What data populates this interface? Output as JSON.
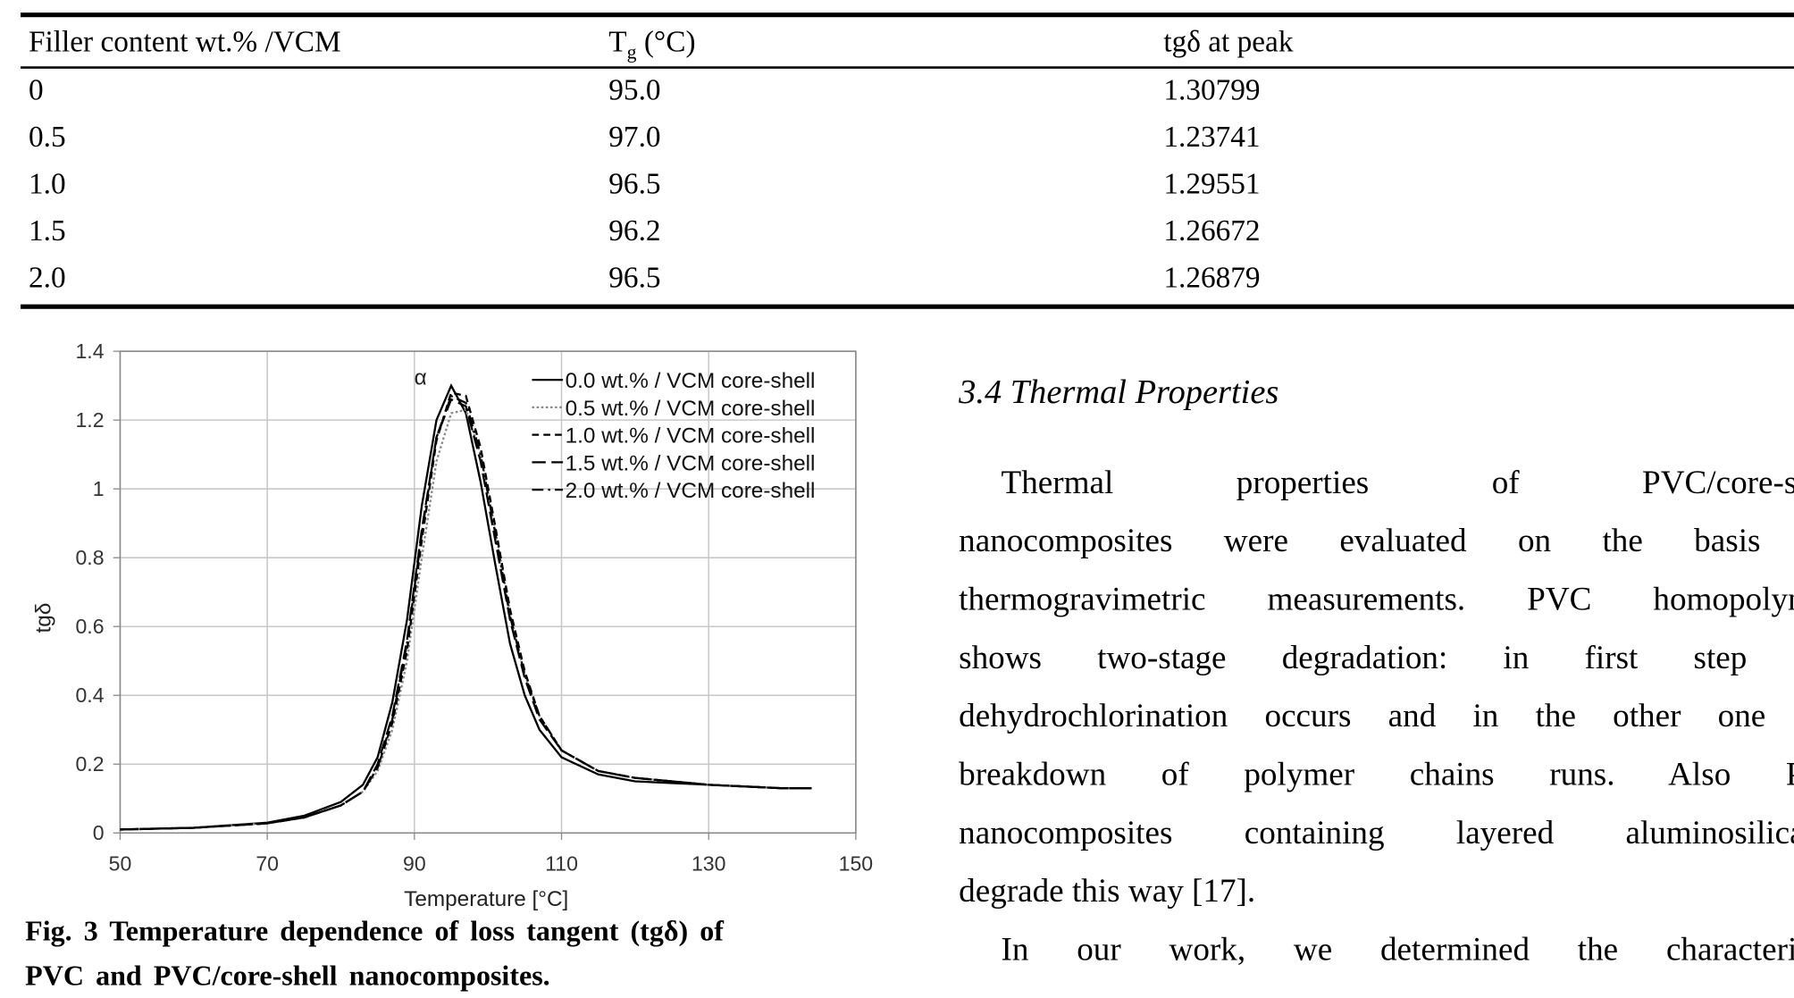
{
  "table": {
    "header": [
      {
        "text": "Filler content wt.% /VCM"
      },
      {
        "text": "T",
        "sub": "g",
        "rest": " (°C)"
      },
      {
        "text": "tgδ at peak"
      }
    ],
    "rows": [
      [
        "0",
        "95.0",
        "1.30799"
      ],
      [
        "0.5",
        "97.0",
        "1.23741"
      ],
      [
        "1.0",
        "96.5",
        "1.29551"
      ],
      [
        "1.5",
        "96.2",
        "1.26672"
      ],
      [
        "2.0",
        "96.5",
        "1.26879"
      ]
    ]
  },
  "chart_data": {
    "type": "line",
    "x_label": "Temperature [°C]",
    "y_label": "tgδ",
    "annotation": "α",
    "x": [
      50,
      60,
      70,
      75,
      80,
      83,
      85,
      87,
      89,
      91,
      93,
      95,
      97,
      99,
      101,
      103,
      105,
      107,
      110,
      115,
      120,
      130,
      140,
      144
    ],
    "series": [
      {
        "name": "0.0 wt.% / VCM core-shell",
        "color": "#000000",
        "style": "solid",
        "values": [
          0.01,
          0.015,
          0.03,
          0.05,
          0.09,
          0.14,
          0.22,
          0.38,
          0.62,
          0.95,
          1.2,
          1.3,
          1.22,
          1.02,
          0.78,
          0.55,
          0.4,
          0.3,
          0.22,
          0.17,
          0.15,
          0.14,
          0.13,
          0.13
        ]
      },
      {
        "name": "0.5 wt.% / VCM core-shell",
        "color": "#888888",
        "style": "dotted",
        "values": [
          0.01,
          0.015,
          0.028,
          0.045,
          0.08,
          0.12,
          0.18,
          0.3,
          0.5,
          0.8,
          1.08,
          1.22,
          1.23,
          1.1,
          0.88,
          0.64,
          0.46,
          0.34,
          0.24,
          0.18,
          0.16,
          0.14,
          0.13,
          0.13
        ]
      },
      {
        "name": "1.0 wt.% / VCM core-shell",
        "color": "#000000",
        "style": "dashed",
        "values": [
          0.01,
          0.015,
          0.028,
          0.045,
          0.08,
          0.12,
          0.19,
          0.32,
          0.53,
          0.85,
          1.14,
          1.28,
          1.27,
          1.12,
          0.89,
          0.65,
          0.47,
          0.34,
          0.24,
          0.18,
          0.16,
          0.14,
          0.13,
          0.13
        ]
      },
      {
        "name": "1.5 wt.% / VCM core-shell",
        "color": "#000000",
        "style": "longdash",
        "values": [
          0.01,
          0.015,
          0.028,
          0.045,
          0.08,
          0.12,
          0.2,
          0.34,
          0.56,
          0.88,
          1.15,
          1.26,
          1.24,
          1.08,
          0.85,
          0.62,
          0.45,
          0.33,
          0.24,
          0.18,
          0.16,
          0.14,
          0.13,
          0.13
        ]
      },
      {
        "name": "2.0 wt.% / VCM core-shell",
        "color": "#000000",
        "style": "dashdot",
        "values": [
          0.01,
          0.015,
          0.028,
          0.045,
          0.08,
          0.12,
          0.19,
          0.33,
          0.55,
          0.87,
          1.15,
          1.27,
          1.25,
          1.1,
          0.87,
          0.63,
          0.46,
          0.34,
          0.24,
          0.18,
          0.16,
          0.14,
          0.13,
          0.13
        ]
      }
    ],
    "xlim": [
      50,
      150
    ],
    "xticks": [
      50,
      70,
      90,
      110,
      130,
      150
    ],
    "ylim": [
      0,
      1.4
    ],
    "yticks": [
      0,
      0.2,
      0.4,
      0.6,
      0.8,
      1,
      1.2,
      1.4
    ],
    "grid": true,
    "legend": "upper right"
  },
  "caption": {
    "lines": [
      "Fig. 3   Temperature dependence of loss tangent (tgδ) of",
      "PVC and PVC/core-shell nanocomposites."
    ]
  },
  "section": {
    "heading": "3.4 Thermal Properties",
    "lines": [
      "Thermal properties of PVC/core-she",
      "nanocomposites were evaluated on the basis o",
      "thermogravimetric measurements. PVC homopolyme",
      "shows two-stage degradation: in first step th",
      "dehydrochlorination occurs and in the other one th",
      "breakdown of polymer chains runs. Also PV",
      "nanocomposites containing layered aluminosilicate",
      "degrade this way [17].",
      "In our work, we determined the characteristi"
    ]
  }
}
